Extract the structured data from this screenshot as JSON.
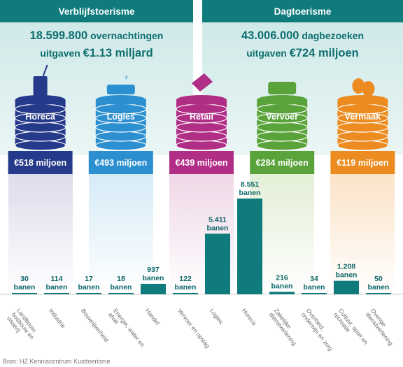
{
  "overnight": {
    "title": "Verblijfstoerisme",
    "stat_number": "18.599.800",
    "stat_label": "overnachtingen",
    "spend_label": "uitgaven",
    "spend_value": "€1.13 miljard"
  },
  "day": {
    "title": "Dagtoerisme",
    "stat_number": "43.006.000",
    "stat_label": "dagbezoeken",
    "spend_label": "uitgaven",
    "spend_value": "€724 miljoen"
  },
  "colors": {
    "header": "#0f7b7c",
    "bar": "#0f7b7c",
    "stack": "#253a8a",
    "horeca": "#253a8a",
    "logies": "#2b8fd0",
    "retail": "#b12e86",
    "vervoer": "#5aa33a",
    "vermaak": "#ec8b1f"
  },
  "chart_data": [
    {
      "type": "stacked-coins",
      "title": "",
      "categories": [
        "Horeca",
        "Logies",
        "Retail",
        "Vervoer",
        "Vermaak"
      ],
      "values_million_eur": [
        518,
        493,
        439,
        284,
        119
      ],
      "value_labels": [
        "€518 miljoen",
        "€493 miljoen",
        "€439 miljoen",
        "€284 miljoen",
        "€119 miljoen"
      ],
      "icons": [
        "drink-icon",
        "bed-icon",
        "price-tag-icon",
        "bus-icon",
        "theater-masks-icon"
      ]
    },
    {
      "type": "bar",
      "title": "",
      "xlabel": "",
      "ylabel": "",
      "unit": "banen",
      "categories": [
        "Landbouw, bosbouw en visserij",
        "Industrie",
        "Bouwnijverheid",
        "Energie, water en afval",
        "Handel",
        "Vervoer en opslag",
        "Logies",
        "Horeca",
        "Zakelijke dienstverlening",
        "Overheid, onderwijs en zorg",
        "Cultuur, sport en recreatie",
        "Overige dienstverlening"
      ],
      "values": [
        30,
        114,
        17,
        18,
        937,
        122,
        5411,
        8551,
        216,
        34,
        1208,
        50
      ],
      "value_labels": [
        "30",
        "114",
        "17",
        "18",
        "937",
        "122",
        "5.411",
        "8.551",
        "216",
        "34",
        "1.208",
        "50"
      ],
      "grid": false
    }
  ],
  "source": "Bron: HZ Kenniscentrum Kusttoerisme"
}
